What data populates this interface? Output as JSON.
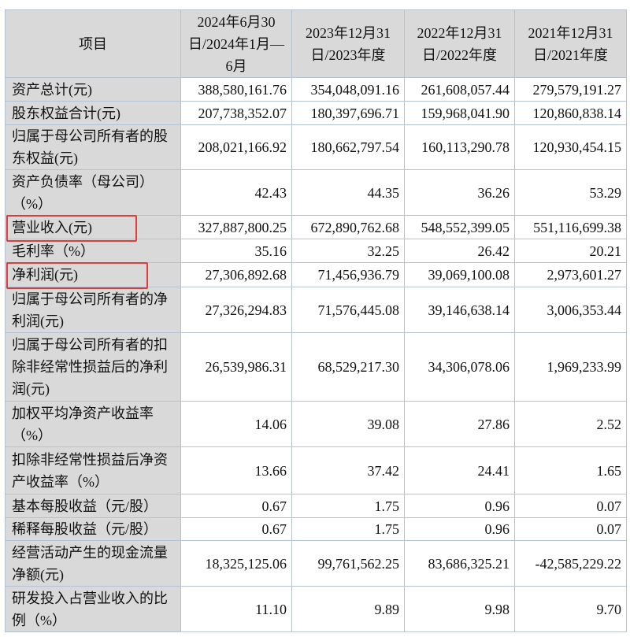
{
  "table": {
    "headers": [
      "项目",
      "2024年6月30日/2024年1月—6月",
      "2023年12月31日/2023年度",
      "2022年12月31日/2022年度",
      "2021年12月31日/2021年度"
    ],
    "rows": [
      {
        "label": "资产总计(元)",
        "values": [
          "388,580,161.76",
          "354,048,091.16",
          "261,608,057.44",
          "279,579,191.27"
        ]
      },
      {
        "label": "股东权益合计(元)",
        "values": [
          "207,738,352.07",
          "180,397,696.71",
          "159,968,041.90",
          "120,860,838.14"
        ]
      },
      {
        "label": "归属于母公司所有者的股东权益(元)",
        "values": [
          "208,021,166.92",
          "180,662,797.54",
          "160,113,290.78",
          "120,930,454.15"
        ]
      },
      {
        "label": "资产负债率（母公司）（%）",
        "values": [
          "42.43",
          "44.35",
          "36.26",
          "53.29"
        ]
      },
      {
        "label": "营业收入(元)",
        "values": [
          "327,887,800.25",
          "672,890,762.68",
          "548,552,399.05",
          "551,116,699.38"
        ],
        "highlighted": true
      },
      {
        "label": "毛利率（%）",
        "values": [
          "35.16",
          "32.25",
          "26.42",
          "20.21"
        ]
      },
      {
        "label": "净利润(元)",
        "values": [
          "27,306,892.68",
          "71,456,936.79",
          "39,069,100.08",
          "2,973,601.27"
        ],
        "highlighted": true
      },
      {
        "label": "归属于母公司所有者的净利润(元)",
        "values": [
          "27,326,294.83",
          "71,576,445.08",
          "39,146,638.14",
          "3,006,353.44"
        ]
      },
      {
        "label": "归属于母公司所有者的扣除非经常性损益后的净利润(元)",
        "values": [
          "26,539,986.31",
          "68,529,217.30",
          "34,306,078.06",
          "1,969,233.99"
        ]
      },
      {
        "label": "加权平均净资产收益率（%）",
        "values": [
          "14.06",
          "39.08",
          "27.86",
          "2.52"
        ]
      },
      {
        "label": "扣除非经常性损益后净资产收益率（%）",
        "values": [
          "13.66",
          "37.42",
          "24.41",
          "1.65"
        ]
      },
      {
        "label": "基本每股收益（元/股）",
        "values": [
          "0.67",
          "1.75",
          "0.96",
          "0.07"
        ]
      },
      {
        "label": "稀释每股收益（元/股）",
        "values": [
          "0.67",
          "1.75",
          "0.96",
          "0.07"
        ]
      },
      {
        "label": "经营活动产生的现金流量净额(元)",
        "values": [
          "18,325,125.06",
          "99,761,562.25",
          "83,686,325.21",
          "-42,585,229.22"
        ]
      },
      {
        "label": "研发投入占营业收入的比例（%）",
        "values": [
          "11.10",
          "9.89",
          "9.98",
          "9.70"
        ]
      }
    ]
  },
  "colors": {
    "highlight": "#e03c3c",
    "label_bg": "#d9d9d9",
    "border": "#b3c2d6"
  }
}
